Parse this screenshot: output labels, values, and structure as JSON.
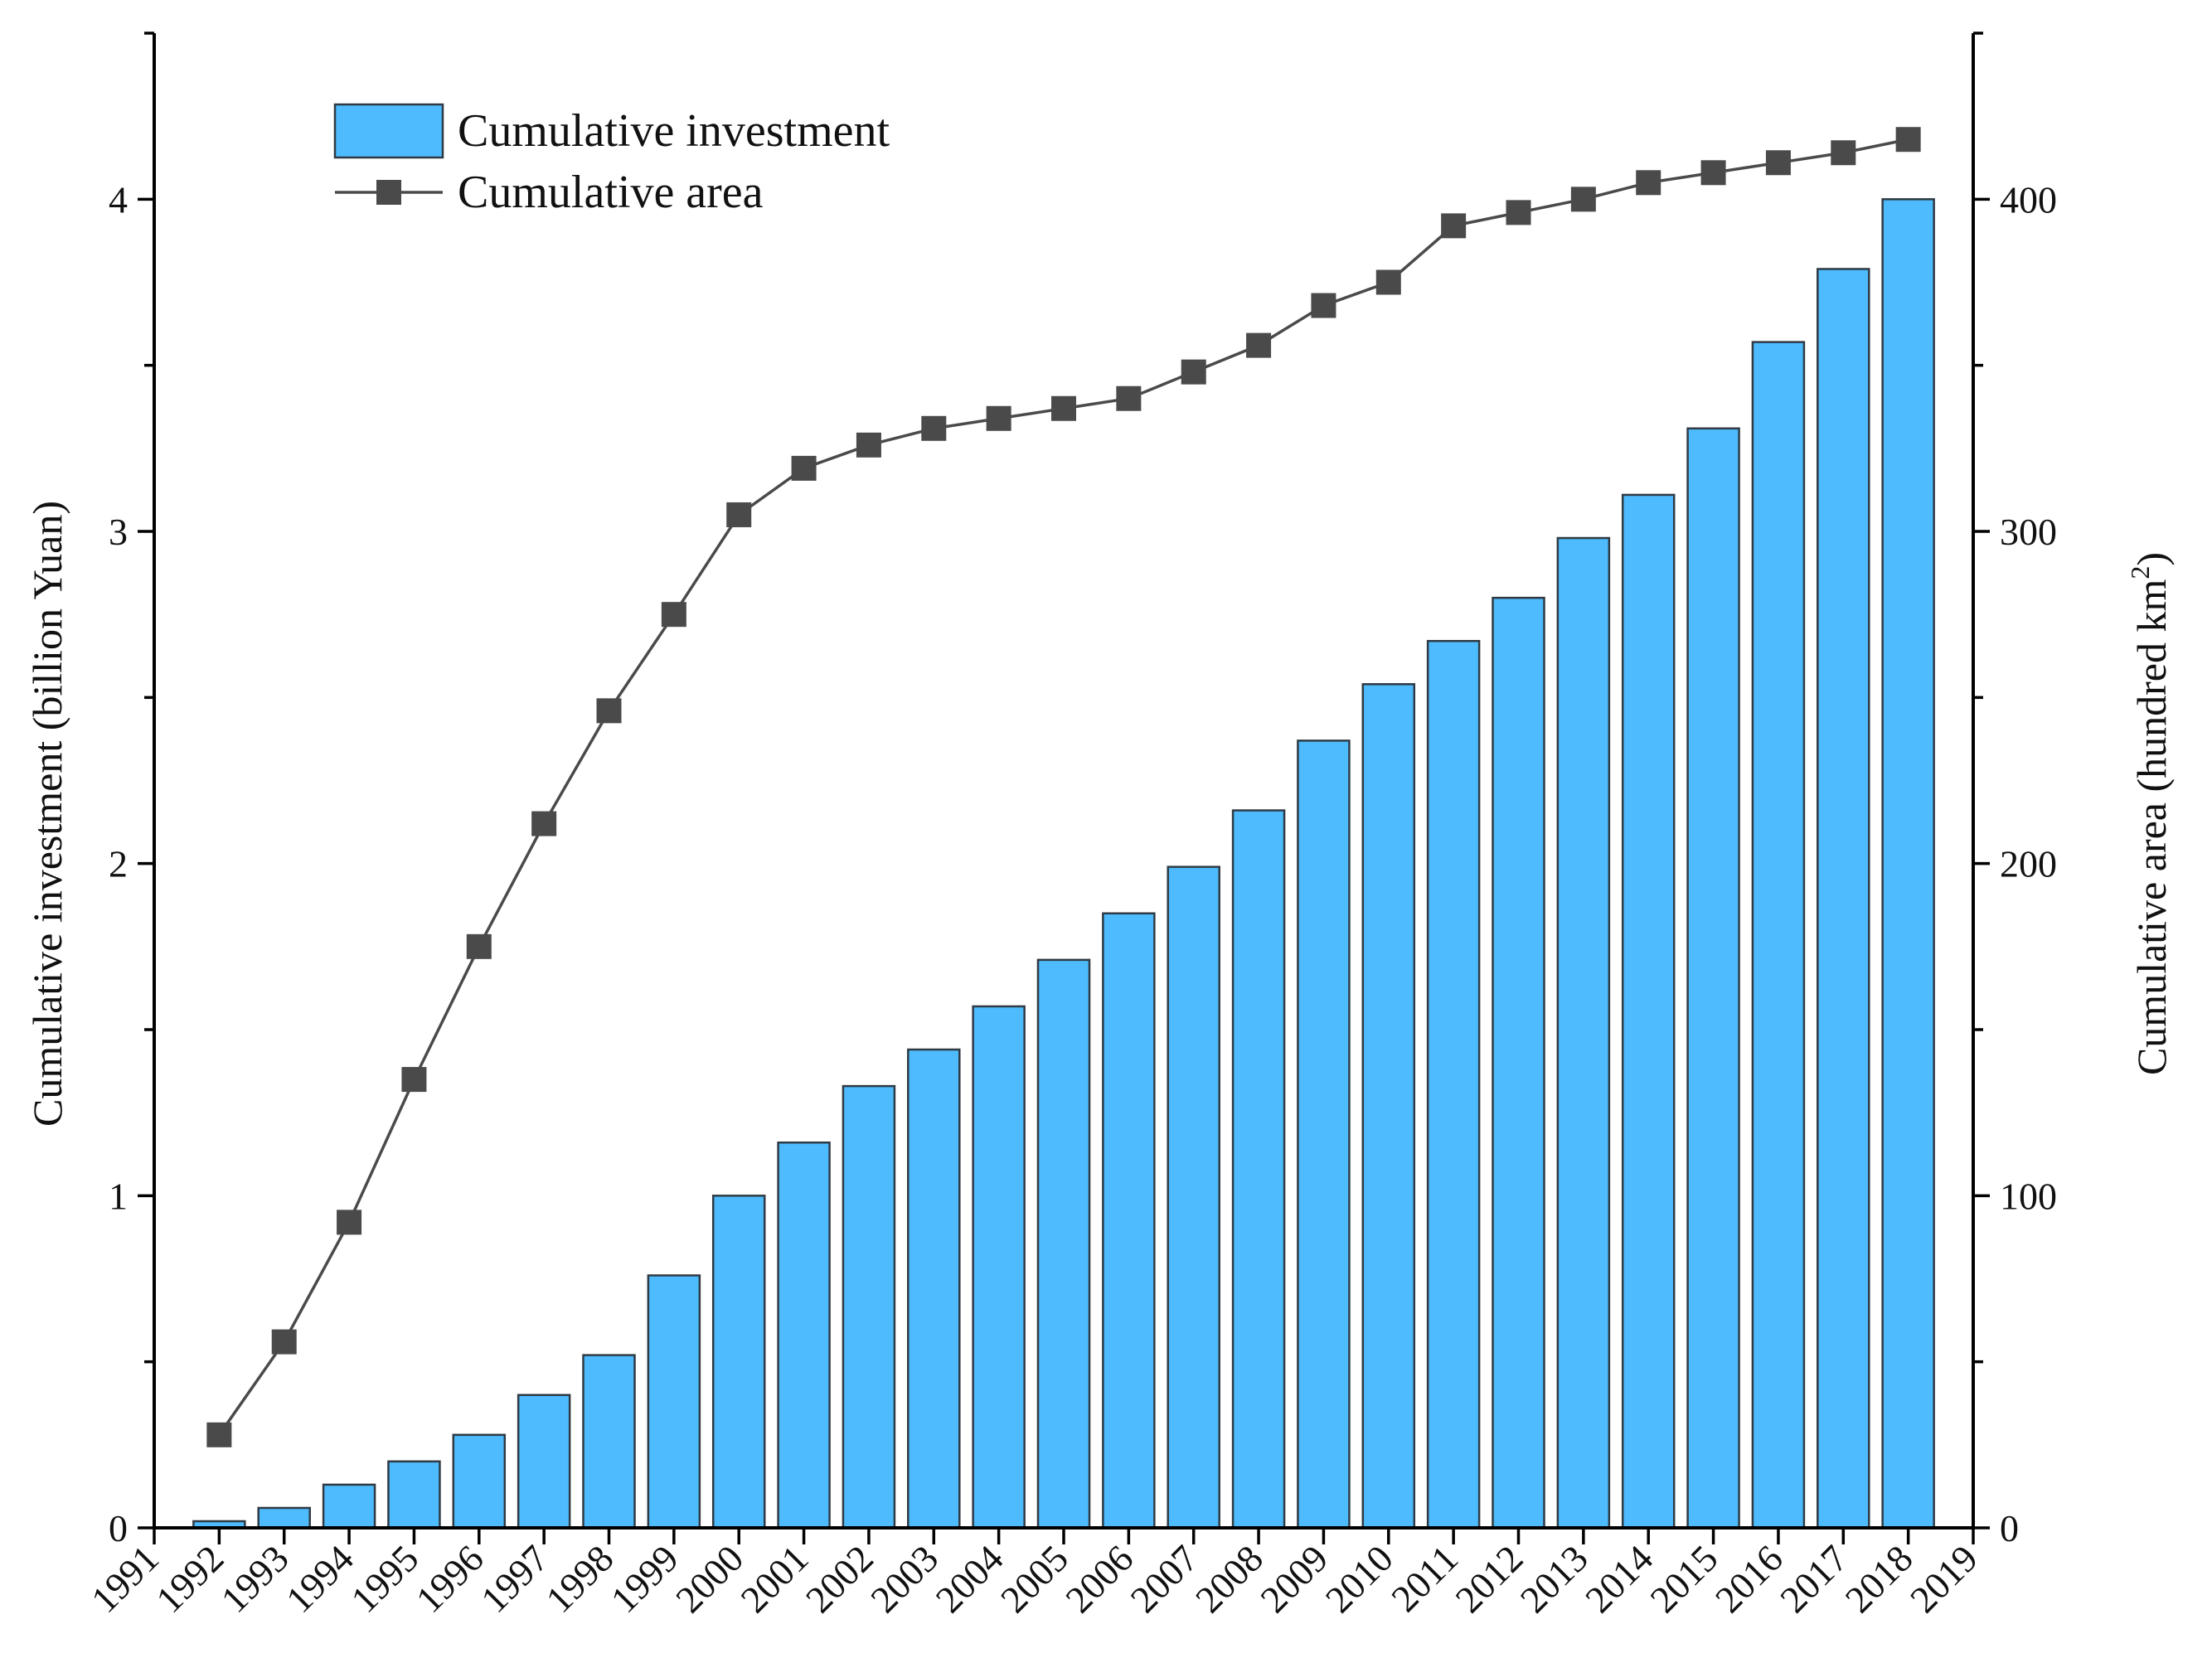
{
  "chart_data": {
    "type": "bar",
    "categories": [
      "1992",
      "1993",
      "1994",
      "1995",
      "1996",
      "1997",
      "1998",
      "1999",
      "2000",
      "2001",
      "2002",
      "2003",
      "2004",
      "2005",
      "2006",
      "2007",
      "2008",
      "2009",
      "2010",
      "2011",
      "2012",
      "2013",
      "2014",
      "2015",
      "2016",
      "2017",
      "2018"
    ],
    "x_tick_labels": [
      "1991",
      "1992",
      "1993",
      "1994",
      "1995",
      "1996",
      "1997",
      "1998",
      "1999",
      "2000",
      "2001",
      "2002",
      "2003",
      "2004",
      "2005",
      "2006",
      "2007",
      "2008",
      "2009",
      "2010",
      "2011",
      "2012",
      "2013",
      "2014",
      "2015",
      "2016",
      "2017",
      "2018",
      "2019"
    ],
    "xlim": [
      1991,
      2019
    ],
    "series": [
      {
        "name": "Cumulative investment",
        "type": "bar",
        "axis": "left",
        "values": [
          0.02,
          0.06,
          0.13,
          0.2,
          0.28,
          0.4,
          0.52,
          0.76,
          1.0,
          1.16,
          1.33,
          1.44,
          1.57,
          1.71,
          1.85,
          1.99,
          2.16,
          2.37,
          2.54,
          2.67,
          2.8,
          2.98,
          3.11,
          3.31,
          3.57,
          3.79,
          4.0
        ]
      },
      {
        "name": "Cumulative area",
        "type": "line",
        "marker": "square",
        "axis": "right",
        "values": [
          28,
          56,
          92,
          135,
          175,
          212,
          246,
          275,
          305,
          319,
          326,
          331,
          334,
          337,
          340,
          348,
          356,
          368,
          375,
          392,
          396,
          400,
          405,
          408,
          411,
          414,
          418
        ]
      }
    ],
    "ylabel": "Cumulative investment (billion Yuan)",
    "ylabel_right": "Cumulative area (hundred km",
    "ylabel_right_superscript": "2",
    "ylabel_right_suffix": ")",
    "ylim": [
      0,
      4.5
    ],
    "ylim_right": [
      0,
      450
    ],
    "y_ticks": [
      0,
      1,
      2,
      3,
      4
    ],
    "y_ticks_right": [
      0,
      100,
      200,
      300,
      400
    ],
    "grid": false,
    "legend_position": "top-left",
    "colors": {
      "bar_fill": "#4dbbfd",
      "bar_stroke": "#2f3a44",
      "line": "#4a4a4a",
      "marker": "#4a4a4a",
      "axis": "#000000"
    }
  }
}
